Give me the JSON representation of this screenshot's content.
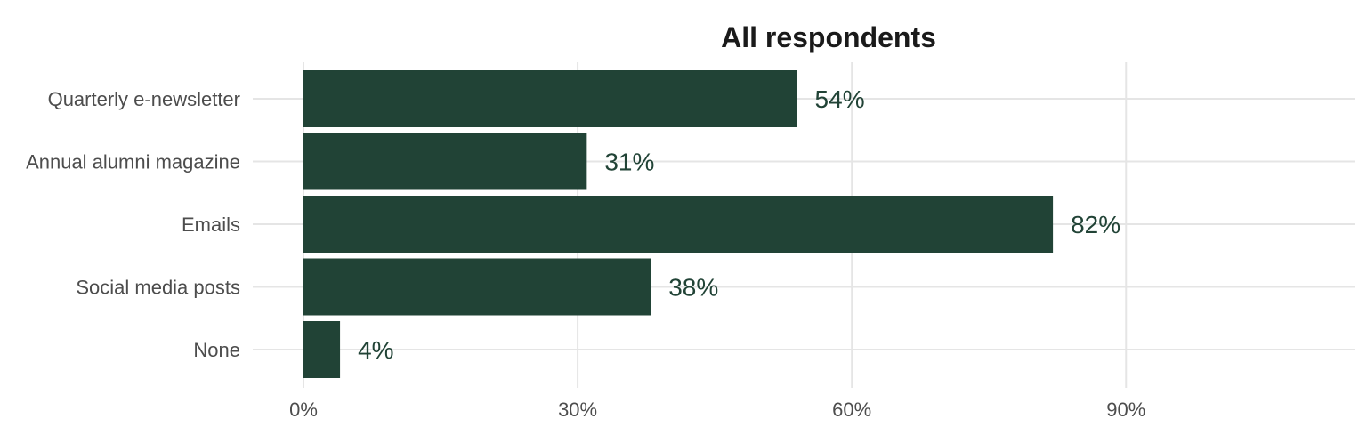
{
  "chart_data": {
    "type": "bar",
    "orientation": "horizontal",
    "title": "All respondents",
    "xlabel": "",
    "ylabel": "",
    "categories": [
      "Quarterly e-newsletter",
      "Annual alumni magazine",
      "Emails",
      "Social media posts",
      "None"
    ],
    "values": [
      54,
      31,
      82,
      38,
      4
    ],
    "value_labels": [
      "54%",
      "31%",
      "82%",
      "38%",
      "4%"
    ],
    "x_ticks": [
      0,
      30,
      60,
      90
    ],
    "x_tick_labels": [
      "0%",
      "30%",
      "60%",
      "90%"
    ],
    "xlim": [
      0,
      115
    ],
    "grid": true,
    "legend": "none",
    "colors": {
      "bar": "#214336",
      "label": "#214336",
      "grid": "#e5e5e5",
      "tick_text": "#4d4d4d",
      "title": "#1a1a1a"
    }
  }
}
